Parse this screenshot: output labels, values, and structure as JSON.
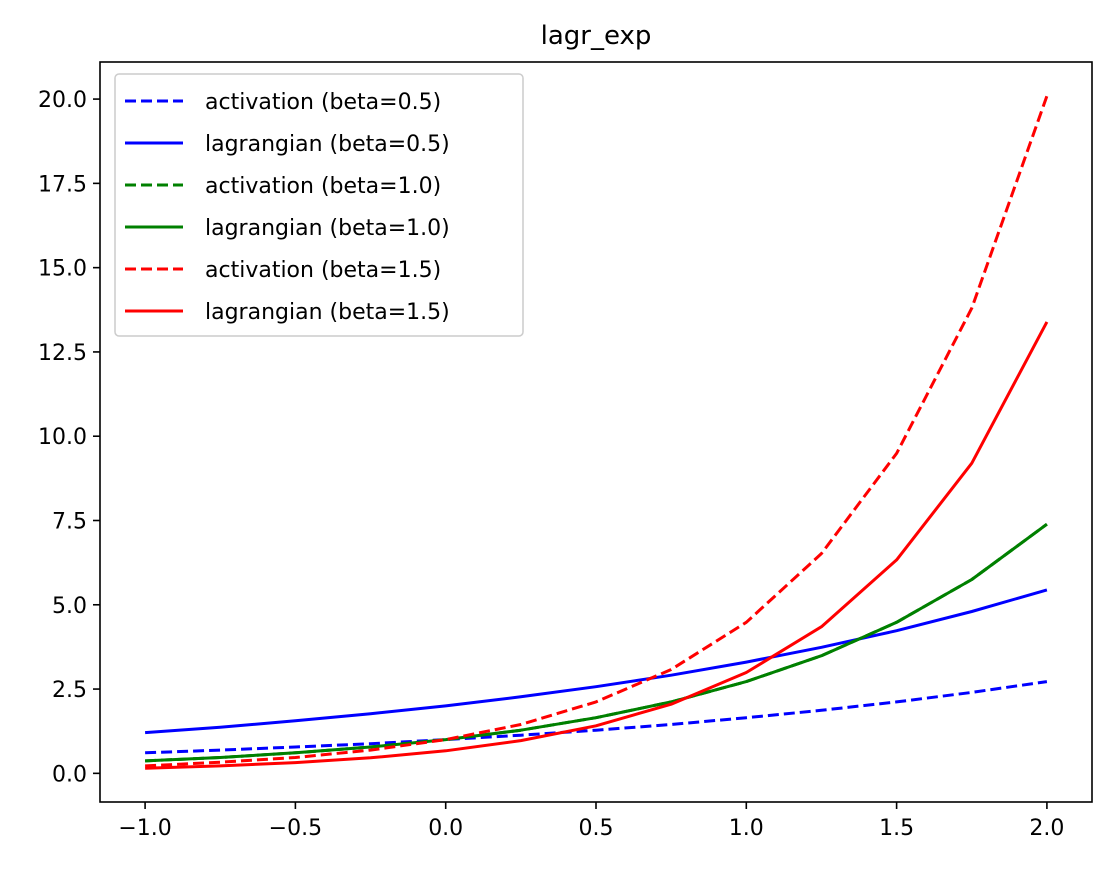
{
  "chart_data": {
    "type": "line",
    "title": "lagr_exp",
    "xlabel": "",
    "ylabel": "",
    "xlim": [
      -1.15,
      2.15
    ],
    "ylim": [
      -0.85,
      21.1
    ],
    "xticks": [
      -1.0,
      -0.5,
      0.0,
      0.5,
      1.0,
      1.5,
      2.0
    ],
    "xtick_labels": [
      "−1.0",
      "−0.5",
      "0.0",
      "0.5",
      "1.0",
      "1.5",
      "2.0"
    ],
    "yticks": [
      0.0,
      2.5,
      5.0,
      7.5,
      10.0,
      12.5,
      15.0,
      17.5,
      20.0
    ],
    "ytick_labels": [
      "0.0",
      "2.5",
      "5.0",
      "7.5",
      "10.0",
      "12.5",
      "15.0",
      "17.5",
      "20.0"
    ],
    "grid": false,
    "legend_position": "top-left",
    "x": [
      -1.0,
      -0.75,
      -0.5,
      -0.25,
      0.0,
      0.25,
      0.5,
      0.75,
      1.0,
      1.25,
      1.5,
      1.75,
      2.0
    ],
    "series": [
      {
        "name": "activation (beta=0.5)",
        "color": "#0000ff",
        "dash": true,
        "values": [
          0.61,
          0.69,
          0.78,
          0.88,
          1.0,
          1.13,
          1.28,
          1.45,
          1.65,
          1.87,
          2.12,
          2.4,
          2.72
        ]
      },
      {
        "name": "lagrangian (beta=0.5)",
        "color": "#0000ff",
        "dash": false,
        "values": [
          1.21,
          1.37,
          1.56,
          1.77,
          2.0,
          2.27,
          2.57,
          2.91,
          3.3,
          3.74,
          4.23,
          4.8,
          5.44
        ]
      },
      {
        "name": "activation (beta=1.0)",
        "color": "#008000",
        "dash": true,
        "values": [
          0.37,
          0.47,
          0.61,
          0.78,
          1.0,
          1.28,
          1.65,
          2.12,
          2.72,
          3.49,
          4.48,
          5.75,
          7.39
        ]
      },
      {
        "name": "lagrangian (beta=1.0)",
        "color": "#008000",
        "dash": false,
        "values": [
          0.37,
          0.47,
          0.61,
          0.78,
          1.0,
          1.28,
          1.65,
          2.12,
          2.72,
          3.49,
          4.48,
          5.75,
          7.39
        ]
      },
      {
        "name": "activation (beta=1.5)",
        "color": "#ff0000",
        "dash": true,
        "values": [
          0.22,
          0.33,
          0.47,
          0.69,
          1.0,
          1.45,
          2.12,
          3.08,
          4.48,
          6.52,
          9.49,
          13.8,
          20.09
        ]
      },
      {
        "name": "lagrangian (beta=1.5)",
        "color": "#ff0000",
        "dash": false,
        "values": [
          0.15,
          0.22,
          0.32,
          0.46,
          0.67,
          0.97,
          1.41,
          2.05,
          2.99,
          4.35,
          6.33,
          9.2,
          13.39
        ]
      }
    ]
  }
}
